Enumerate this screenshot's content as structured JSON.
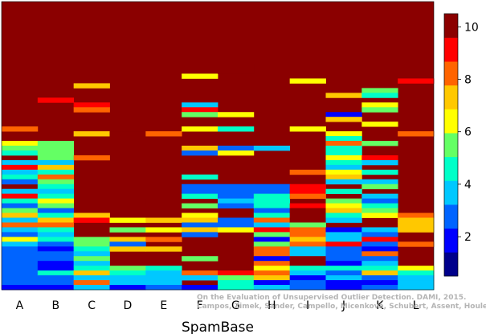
{
  "chart_data": {
    "type": "heatmap",
    "xlabel": "SpamBase",
    "categories": [
      "A",
      "B",
      "C",
      "D",
      "E",
      "F",
      "G",
      "H",
      "I",
      "J",
      "K",
      "L"
    ],
    "rows": 60,
    "colorbar": {
      "ticks": [
        2,
        4,
        6,
        8,
        10
      ],
      "range": [
        0.5,
        10.5
      ],
      "colors": [
        "#00008B",
        "#0000FF",
        "#0064FF",
        "#00C8FF",
        "#00FFC8",
        "#64FF64",
        "#FFFF00",
        "#FFC800",
        "#FF6400",
        "#FF0000",
        "#8B0000"
      ]
    },
    "cells": [
      [
        "A",
        26,
        8
      ],
      [
        "A",
        29,
        6
      ],
      [
        "A",
        30,
        5
      ],
      [
        "A",
        31,
        4
      ],
      [
        "A",
        33,
        3
      ],
      [
        "A",
        34,
        9
      ],
      [
        "A",
        35,
        3
      ],
      [
        "A",
        36,
        4
      ],
      [
        "A",
        37,
        2
      ],
      [
        "A",
        39,
        3
      ],
      [
        "A",
        40,
        9
      ],
      [
        "A",
        41,
        4
      ],
      [
        "A",
        42,
        2
      ],
      [
        "A",
        43,
        5
      ],
      [
        "A",
        44,
        7
      ],
      [
        "A",
        45,
        3
      ],
      [
        "A",
        46,
        8
      ],
      [
        "A",
        47,
        3
      ],
      [
        "A",
        48,
        2
      ],
      [
        "A",
        49,
        6
      ],
      [
        "A",
        50,
        3
      ],
      [
        "A",
        51,
        2
      ],
      [
        "A",
        52,
        2
      ],
      [
        "A",
        53,
        2
      ],
      [
        "A",
        54,
        2
      ],
      [
        "A",
        55,
        2
      ],
      [
        "A",
        56,
        2
      ],
      [
        "A",
        57,
        2
      ],
      [
        "A",
        58,
        2
      ],
      [
        "A",
        59,
        1
      ],
      [
        "B",
        20,
        9
      ],
      [
        "B",
        29,
        5
      ],
      [
        "B",
        30,
        5
      ],
      [
        "B",
        31,
        5
      ],
      [
        "B",
        32,
        5
      ],
      [
        "B",
        33,
        3
      ],
      [
        "B",
        34,
        7
      ],
      [
        "B",
        35,
        4
      ],
      [
        "B",
        36,
        8
      ],
      [
        "B",
        37,
        5
      ],
      [
        "B",
        38,
        4
      ],
      [
        "B",
        39,
        3
      ],
      [
        "B",
        40,
        4
      ],
      [
        "B",
        41,
        6
      ],
      [
        "B",
        42,
        5
      ],
      [
        "B",
        43,
        2
      ],
      [
        "B",
        44,
        4
      ],
      [
        "B",
        45,
        7
      ],
      [
        "B",
        46,
        8
      ],
      [
        "B",
        47,
        4
      ],
      [
        "B",
        48,
        3
      ],
      [
        "B",
        49,
        4
      ],
      [
        "B",
        50,
        2
      ],
      [
        "B",
        51,
        1
      ],
      [
        "B",
        52,
        2
      ],
      [
        "B",
        53,
        2
      ],
      [
        "B",
        54,
        1
      ],
      [
        "B",
        55,
        1
      ],
      [
        "B",
        56,
        4
      ],
      [
        "B",
        57,
        2
      ],
      [
        "B",
        58,
        2
      ],
      [
        "B",
        59,
        1
      ],
      [
        "C",
        17,
        7
      ],
      [
        "C",
        21,
        9
      ],
      [
        "C",
        22,
        8
      ],
      [
        "C",
        27,
        7
      ],
      [
        "C",
        32,
        8
      ],
      [
        "C",
        44,
        7
      ],
      [
        "C",
        45,
        9
      ],
      [
        "C",
        49,
        5
      ],
      [
        "C",
        50,
        5
      ],
      [
        "C",
        51,
        4
      ],
      [
        "C",
        52,
        3
      ],
      [
        "C",
        53,
        5
      ],
      [
        "C",
        54,
        3
      ],
      [
        "C",
        55,
        4
      ],
      [
        "C",
        56,
        7
      ],
      [
        "C",
        57,
        3
      ],
      [
        "C",
        58,
        8
      ],
      [
        "C",
        59,
        3
      ],
      [
        "D",
        27,
        10
      ],
      [
        "D",
        45,
        6
      ],
      [
        "D",
        47,
        5
      ],
      [
        "D",
        49,
        7
      ],
      [
        "D",
        50,
        2
      ],
      [
        "D",
        51,
        7
      ],
      [
        "D",
        55,
        5
      ],
      [
        "D",
        56,
        4
      ],
      [
        "D",
        57,
        3
      ],
      [
        "D",
        58,
        3
      ],
      [
        "D",
        59,
        1
      ],
      [
        "E",
        27,
        8
      ],
      [
        "E",
        41,
        10
      ],
      [
        "E",
        45,
        7
      ],
      [
        "E",
        47,
        6
      ],
      [
        "E",
        49,
        8
      ],
      [
        "E",
        51,
        7
      ],
      [
        "E",
        55,
        4
      ],
      [
        "E",
        56,
        3
      ],
      [
        "E",
        57,
        3
      ],
      [
        "E",
        58,
        3
      ],
      [
        "E",
        59,
        2
      ],
      [
        "F",
        15,
        6
      ],
      [
        "F",
        21,
        3
      ],
      [
        "F",
        22,
        9
      ],
      [
        "F",
        23,
        5
      ],
      [
        "F",
        26,
        6
      ],
      [
        "F",
        30,
        7
      ],
      [
        "F",
        31,
        2
      ],
      [
        "F",
        36,
        4
      ],
      [
        "F",
        38,
        2
      ],
      [
        "F",
        39,
        2
      ],
      [
        "F",
        40,
        4
      ],
      [
        "F",
        42,
        5
      ],
      [
        "F",
        44,
        6
      ],
      [
        "F",
        45,
        7
      ],
      [
        "F",
        46,
        2
      ],
      [
        "F",
        47,
        7
      ],
      [
        "F",
        48,
        2
      ],
      [
        "F",
        53,
        5
      ],
      [
        "F",
        56,
        8
      ],
      [
        "F",
        57,
        3
      ],
      [
        "F",
        59,
        1
      ],
      [
        "G",
        13,
        10
      ],
      [
        "G",
        14,
        10
      ],
      [
        "G",
        23,
        6
      ],
      [
        "G",
        26,
        4
      ],
      [
        "G",
        30,
        2
      ],
      [
        "G",
        31,
        6
      ],
      [
        "G",
        38,
        2
      ],
      [
        "G",
        39,
        2
      ],
      [
        "G",
        40,
        2
      ],
      [
        "G",
        41,
        3
      ],
      [
        "G",
        42,
        2
      ],
      [
        "G",
        45,
        2
      ],
      [
        "G",
        46,
        2
      ],
      [
        "G",
        47,
        6
      ],
      [
        "G",
        56,
        9
      ],
      [
        "G",
        57,
        5
      ],
      [
        "G",
        58,
        4
      ],
      [
        "G",
        59,
        4
      ],
      [
        "H",
        30,
        3
      ],
      [
        "H",
        38,
        2
      ],
      [
        "H",
        39,
        2
      ],
      [
        "H",
        40,
        4
      ],
      [
        "H",
        41,
        4
      ],
      [
        "H",
        42,
        4
      ],
      [
        "H",
        43,
        2
      ],
      [
        "H",
        44,
        4
      ],
      [
        "H",
        45,
        8
      ],
      [
        "H",
        46,
        3
      ],
      [
        "H",
        47,
        9
      ],
      [
        "H",
        48,
        5
      ],
      [
        "H",
        49,
        1
      ],
      [
        "H",
        50,
        5
      ],
      [
        "H",
        51,
        8
      ],
      [
        "H",
        52,
        8
      ],
      [
        "H",
        53,
        1
      ],
      [
        "H",
        54,
        8
      ],
      [
        "H",
        55,
        6
      ],
      [
        "H",
        56,
        8
      ],
      [
        "H",
        57,
        7
      ],
      [
        "H",
        58,
        1
      ],
      [
        "H",
        59,
        3
      ],
      [
        "I",
        16,
        6
      ],
      [
        "I",
        26,
        6
      ],
      [
        "I",
        35,
        8
      ],
      [
        "I",
        38,
        9
      ],
      [
        "I",
        39,
        9
      ],
      [
        "I",
        40,
        8
      ],
      [
        "I",
        42,
        9
      ],
      [
        "I",
        43,
        10
      ],
      [
        "I",
        44,
        10
      ],
      [
        "I",
        45,
        10
      ],
      [
        "I",
        46,
        5
      ],
      [
        "I",
        47,
        8
      ],
      [
        "I",
        48,
        8
      ],
      [
        "I",
        49,
        7
      ],
      [
        "I",
        50,
        8
      ],
      [
        "I",
        51,
        3
      ],
      [
        "I",
        52,
        3
      ],
      [
        "I",
        53,
        10
      ],
      [
        "I",
        54,
        10
      ],
      [
        "I",
        55,
        4
      ],
      [
        "I",
        56,
        3
      ],
      [
        "I",
        57,
        1
      ],
      [
        "I",
        58,
        2
      ],
      [
        "I",
        59,
        2
      ],
      [
        "J",
        18,
        10
      ],
      [
        "J",
        19,
        7
      ],
      [
        "J",
        23,
        1
      ],
      [
        "J",
        24,
        7
      ],
      [
        "J",
        27,
        6
      ],
      [
        "J",
        28,
        4
      ],
      [
        "J",
        29,
        8
      ],
      [
        "J",
        30,
        4
      ],
      [
        "J",
        31,
        4
      ],
      [
        "J",
        32,
        6
      ],
      [
        "J",
        33,
        4
      ],
      [
        "J",
        34,
        3
      ],
      [
        "J",
        35,
        6
      ],
      [
        "J",
        36,
        7
      ],
      [
        "J",
        37,
        3
      ],
      [
        "J",
        39,
        4
      ],
      [
        "J",
        41,
        5
      ],
      [
        "J",
        42,
        6
      ],
      [
        "J",
        43,
        7
      ],
      [
        "J",
        44,
        4
      ],
      [
        "J",
        45,
        3
      ],
      [
        "J",
        47,
        1
      ],
      [
        "J",
        48,
        3
      ],
      [
        "J",
        49,
        3
      ],
      [
        "J",
        50,
        9
      ],
      [
        "J",
        51,
        2
      ],
      [
        "J",
        52,
        2
      ],
      [
        "J",
        53,
        2
      ],
      [
        "J",
        54,
        1
      ],
      [
        "J",
        55,
        4
      ],
      [
        "J",
        56,
        2
      ],
      [
        "J",
        57,
        3
      ],
      [
        "J",
        58,
        1
      ],
      [
        "J",
        59,
        1
      ],
      [
        "K",
        18,
        5
      ],
      [
        "K",
        19,
        4
      ],
      [
        "K",
        21,
        6
      ],
      [
        "K",
        22,
        5
      ],
      [
        "K",
        25,
        6
      ],
      [
        "K",
        29,
        5
      ],
      [
        "K",
        32,
        9
      ],
      [
        "K",
        33,
        3
      ],
      [
        "K",
        35,
        4
      ],
      [
        "K",
        37,
        3
      ],
      [
        "K",
        38,
        5
      ],
      [
        "K",
        40,
        3
      ],
      [
        "K",
        41,
        2
      ],
      [
        "K",
        42,
        4
      ],
      [
        "K",
        43,
        5
      ],
      [
        "K",
        44,
        6
      ],
      [
        "K",
        47,
        3
      ],
      [
        "K",
        48,
        2
      ],
      [
        "K",
        49,
        9
      ],
      [
        "K",
        50,
        2
      ],
      [
        "K",
        51,
        1
      ],
      [
        "K",
        52,
        8
      ],
      [
        "K",
        53,
        2
      ],
      [
        "K",
        54,
        3
      ],
      [
        "K",
        55,
        4
      ],
      [
        "K",
        56,
        7
      ],
      [
        "K",
        57,
        2
      ],
      [
        "K",
        58,
        1
      ],
      [
        "K",
        59,
        2
      ],
      [
        "L",
        16,
        9
      ],
      [
        "L",
        27,
        8
      ],
      [
        "L",
        44,
        8
      ],
      [
        "L",
        45,
        7
      ],
      [
        "L",
        46,
        7
      ],
      [
        "L",
        47,
        7
      ],
      [
        "L",
        50,
        8
      ],
      [
        "L",
        55,
        6
      ],
      [
        "L",
        56,
        4
      ],
      [
        "L",
        57,
        3
      ],
      [
        "L",
        58,
        3
      ],
      [
        "L",
        59,
        3
      ]
    ]
  },
  "watermark": {
    "line1": "On the Evaluation of Unsupervised Outlier Detection. DAMI, 2015.",
    "line2": "Campos, Zimek, Sander, Campello, Micenková, Schubert, Assent, Houle"
  }
}
